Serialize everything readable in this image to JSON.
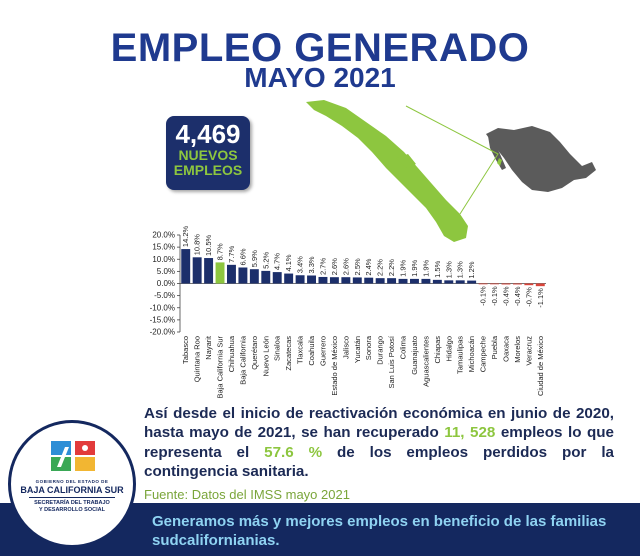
{
  "header": {
    "title": "EMPLEO GENERADO",
    "subtitle": "MAYO 2021"
  },
  "kpi": {
    "value": "4,469",
    "line1": "NUEVOS",
    "line2": "EMPLEOS"
  },
  "colors": {
    "navy": "#1c2f6b",
    "green": "#8dc63f",
    "red": "#d9443a",
    "title_blue": "#1f3a8f",
    "footer_bg": "#14285f"
  },
  "chart_data": {
    "type": "bar",
    "categories": [
      "Tabasco",
      "Quintana Roo",
      "Nayarit",
      "Baja California Sur",
      "Chihuahua",
      "Baja California",
      "Querétaro",
      "Nuevo León",
      "Sinaloa",
      "Zacatecas",
      "Tlaxcala",
      "Coahuila",
      "Guerrero",
      "Estado de México",
      "Jalisco",
      "Yucatán",
      "Sonora",
      "Durango",
      "San Luis Potosí",
      "Colima",
      "Guanajuato",
      "Aguascalientes",
      "Chiapas",
      "Hidalgo",
      "Tamaulipas",
      "Michoacán",
      "Campeche",
      "Puebla",
      "Oaxaca",
      "Morelos",
      "Veracruz",
      "Ciudad de México"
    ],
    "values": [
      14.2,
      10.8,
      10.5,
      8.7,
      7.7,
      6.6,
      5.9,
      5.2,
      4.7,
      4.1,
      3.4,
      3.3,
      2.7,
      2.6,
      2.6,
      2.5,
      2.4,
      2.2,
      2.2,
      1.9,
      1.9,
      1.9,
      1.5,
      1.3,
      1.3,
      1.2,
      -0.1,
      -0.1,
      -0.4,
      -0.4,
      -0.7,
      -1.1
    ],
    "value_labels": [
      "14.2%",
      "10.8%",
      "10.5%",
      "8.7%",
      "7.7%",
      "6.6%",
      "5.9%",
      "5.2%",
      "4.7%",
      "4.1%",
      "3.4%",
      "3.3%",
      "2.7%",
      "2.6%",
      "2.6%",
      "2.5%",
      "2.4%",
      "2.2%",
      "2.2%",
      "1.9%",
      "1.9%",
      "1.9%",
      "1.5%",
      "1.3%",
      "1.3%",
      "1.2%",
      "-0.1%",
      "-0.1%",
      "-0.4%",
      "-0.4%",
      "-0.7%",
      "-1.1%"
    ],
    "highlight": "Baja California Sur",
    "ylim": [
      -20,
      20
    ],
    "yticks": [
      "20.0%",
      "15.0%",
      "10.0%",
      "5.0%",
      "0.0%",
      "-5.0%",
      "-10.0%",
      "-15.0%",
      "-20.0%"
    ],
    "ytick_values": [
      20,
      15,
      10,
      5,
      0,
      -5,
      -10,
      -15,
      -20
    ],
    "grid": false
  },
  "body_text": {
    "p1": "Así desde el inicio de reactivación económica en junio de 2020, hasta mayo de 2021, se han recuperado ",
    "hl1": "11, 528",
    "p2": " empleos lo que representa el ",
    "hl2": "57.6 %",
    "p3": " de los empleos perdidos por la contingencia sanitaria."
  },
  "source": "Fuente: Datos del IMSS mayo 2021",
  "footer": {
    "text": "Generamos más y mejores empleos en beneficio de las familias sudcalifornianias."
  },
  "logo": {
    "line1": "GOBIERNO DEL ESTADO DE",
    "line2": "BAJA CALIFORNIA SUR",
    "line3": "SECRETARÍA DEL TRABAJO",
    "line4": "Y DESARROLLO SOCIAL"
  }
}
